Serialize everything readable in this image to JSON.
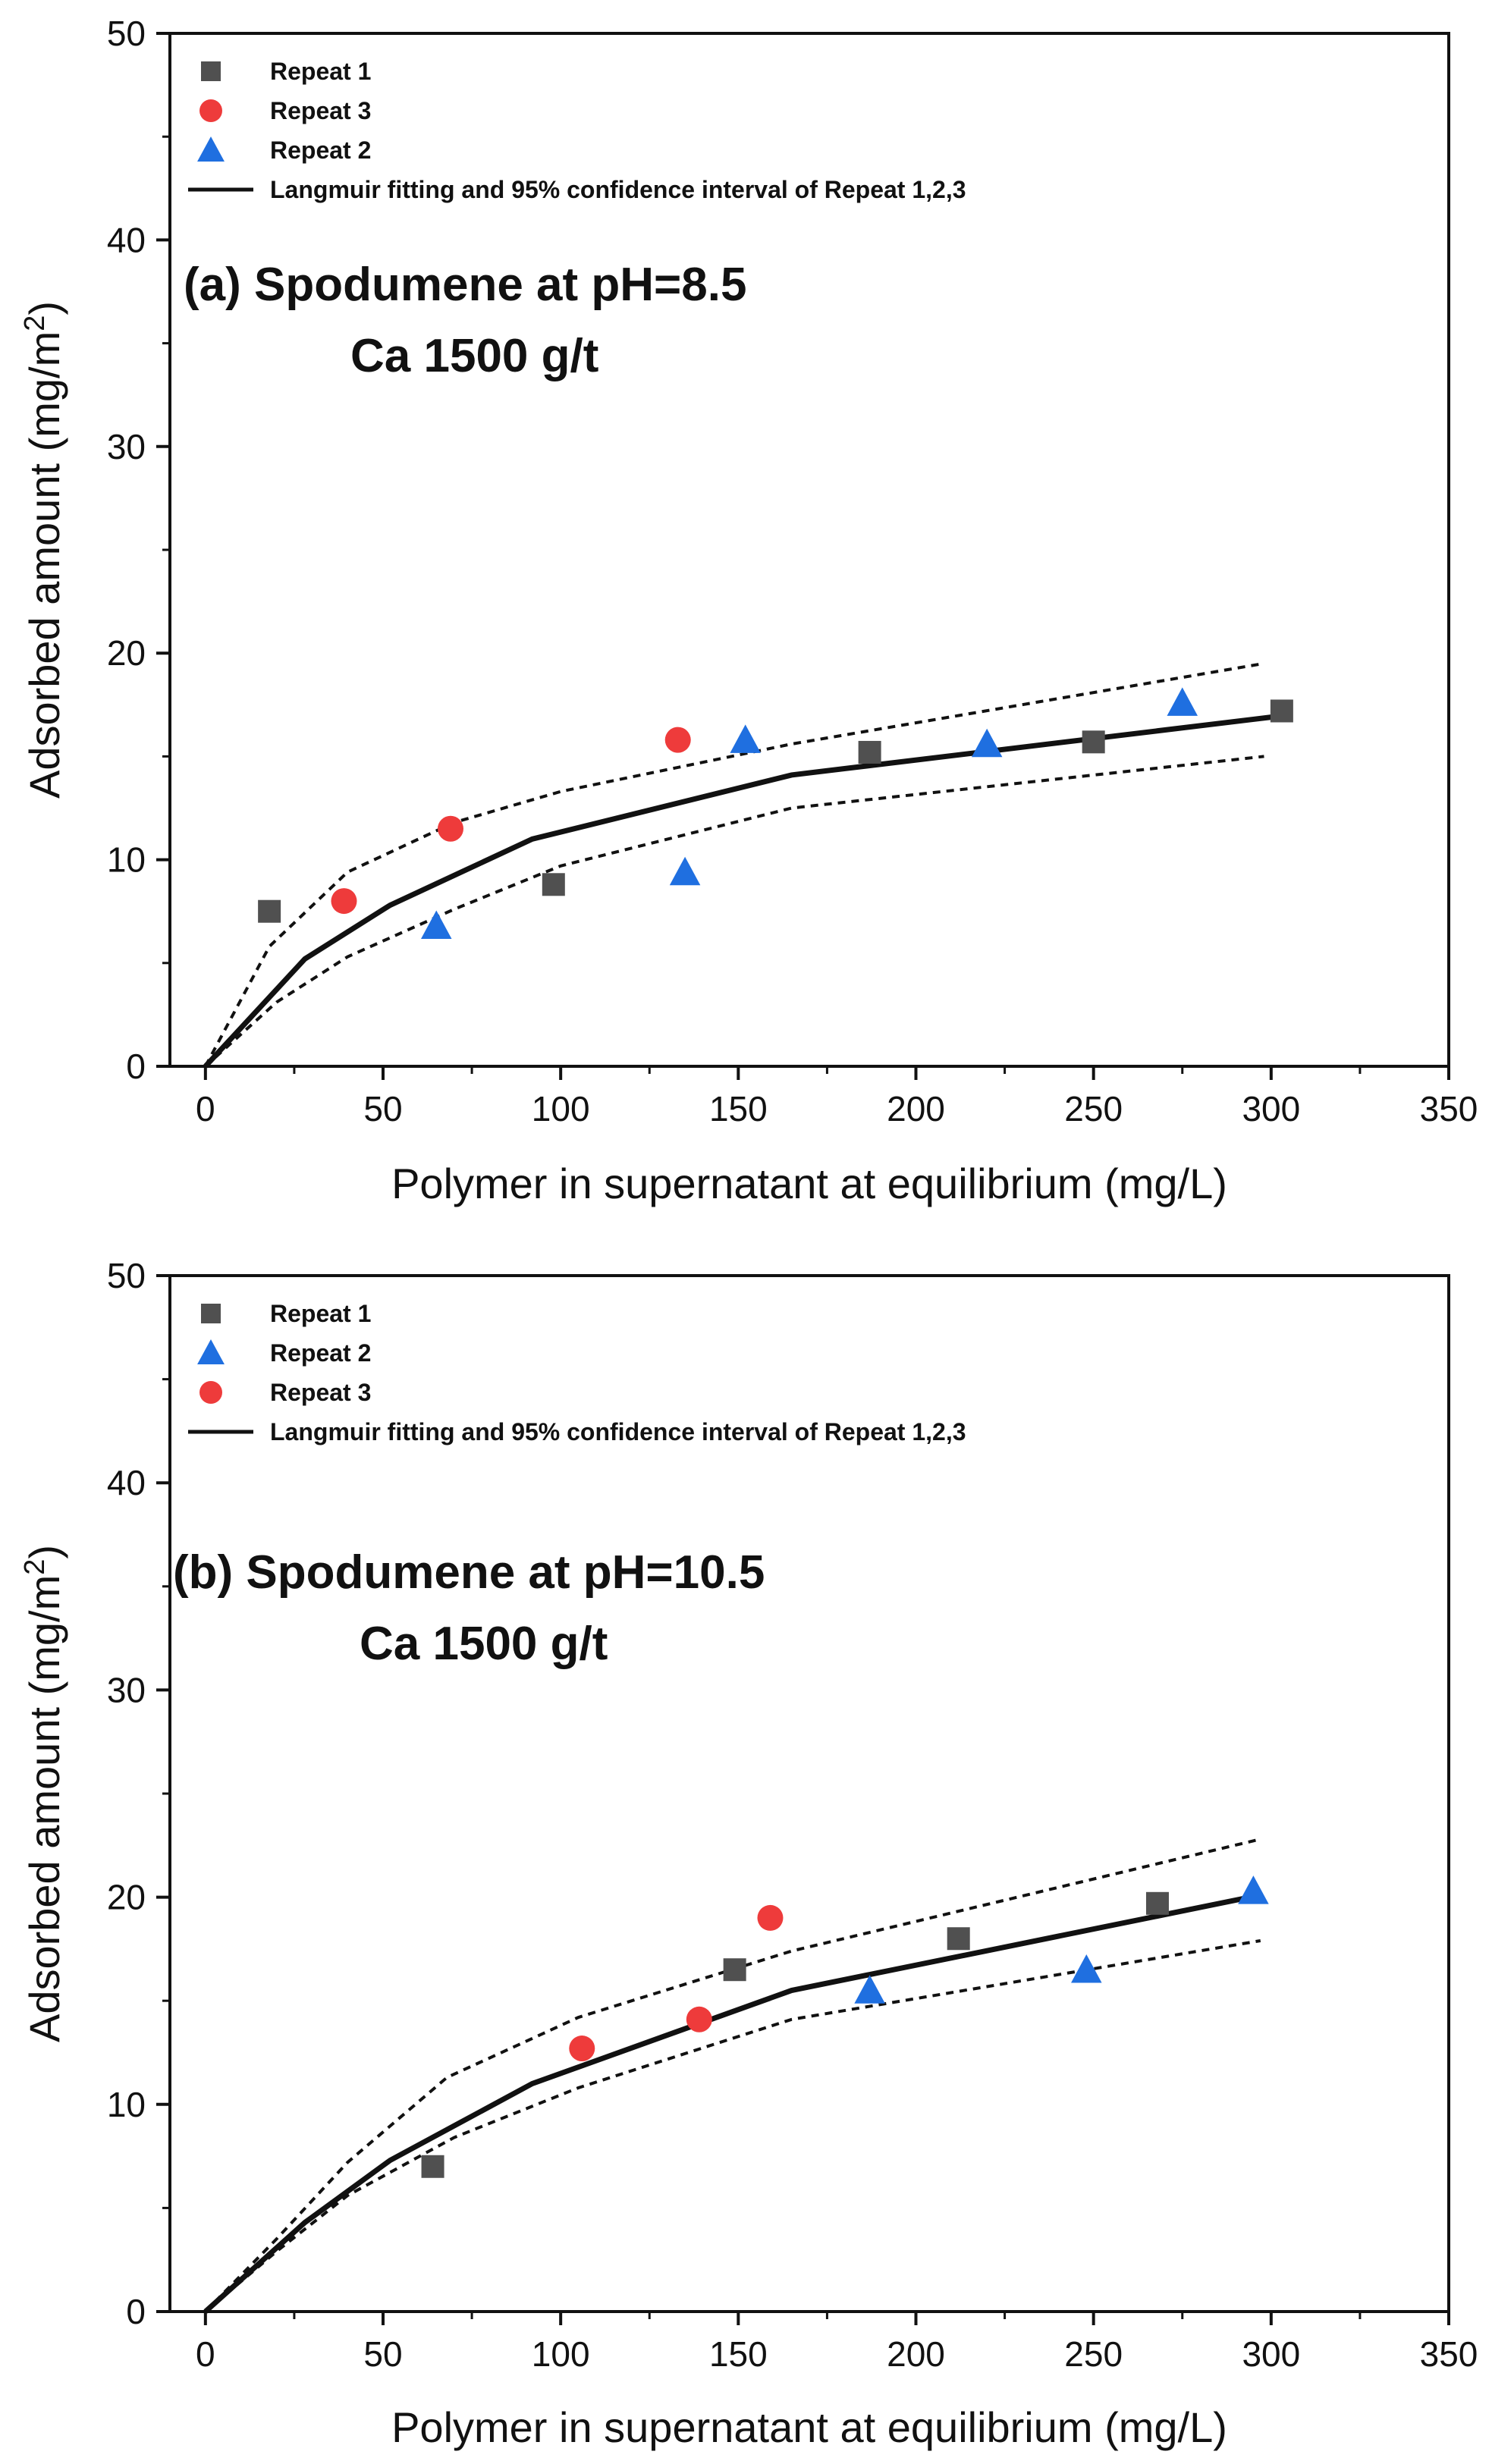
{
  "chart_data": [
    {
      "type": "scatter",
      "panel": "a",
      "title_line1": "(a) Spodumene at pH=8.5",
      "title_line2": "Ca 1500 g/t",
      "xlabel": "Polymer in supernatant at equilibrium (mg/L)",
      "ylabel": "Adsorbed amount (mg/m",
      "ylabel_sup": "2",
      "ylabel_end": ")",
      "xlim": [
        -10,
        350
      ],
      "ylim": [
        0,
        50
      ],
      "xticks": [
        0,
        50,
        100,
        150,
        200,
        250,
        300,
        350
      ],
      "yticks": [
        0,
        10,
        20,
        30,
        40,
        50
      ],
      "legend_position": "top-left",
      "series": [
        {
          "name": "Repeat 1",
          "marker": "square",
          "color": "#505050",
          "x": [
            18,
            98,
            187,
            250,
            303
          ],
          "y": [
            7.5,
            8.8,
            15.2,
            15.7,
            17.2
          ]
        },
        {
          "name": "Repeat 3",
          "marker": "circle",
          "color": "#ee3b3b",
          "x": [
            39,
            69,
            133
          ],
          "y": [
            8.0,
            11.5,
            15.8
          ]
        },
        {
          "name": "Repeat 2",
          "marker": "triangle",
          "color": "#1f6fe0",
          "x": [
            65,
            135,
            152,
            220,
            275
          ],
          "y": [
            6.8,
            9.4,
            15.8,
            15.6,
            17.6
          ]
        }
      ],
      "fit_legend": "Langmuir fitting and 95% confidence interval of Repeat 1,2,3",
      "fit": {
        "x": [
          0,
          28,
          52,
          92,
          165,
          300
        ],
        "y": [
          0,
          5.2,
          7.8,
          11.0,
          14.1,
          16.9
        ]
      },
      "ci_upper": {
        "x": [
          0,
          18,
          40,
          70,
          100,
          165,
          298
        ],
        "y": [
          0,
          5.8,
          9.4,
          11.8,
          13.3,
          15.6,
          19.5
        ]
      },
      "ci_lower": {
        "x": [
          0,
          20,
          40,
          70,
          100,
          165,
          298
        ],
        "y": [
          0,
          3.1,
          5.3,
          7.6,
          9.7,
          12.5,
          15.0
        ]
      }
    },
    {
      "type": "scatter",
      "panel": "b",
      "title_line1": "(b) Spodumene at pH=10.5",
      "title_line2": "Ca 1500 g/t",
      "xlabel": "Polymer in supernatant at equilibrium (mg/L)",
      "ylabel": "Adsorbed amount (mg/m",
      "ylabel_sup": "2",
      "ylabel_end": ")",
      "xlim": [
        -10,
        350
      ],
      "ylim": [
        0,
        50
      ],
      "xticks": [
        0,
        50,
        100,
        150,
        200,
        250,
        300,
        350
      ],
      "yticks": [
        0,
        10,
        20,
        30,
        40,
        50
      ],
      "legend_position": "top-left",
      "series": [
        {
          "name": "Repeat 1",
          "marker": "square",
          "color": "#505050",
          "x": [
            64,
            149,
            212,
            268
          ],
          "y": [
            7.0,
            16.5,
            18.0,
            19.7
          ]
        },
        {
          "name": "Repeat 2",
          "marker": "triangle",
          "color": "#1f6fe0",
          "x": [
            187,
            248,
            295
          ],
          "y": [
            15.5,
            16.5,
            20.3
          ]
        },
        {
          "name": "Repeat 3",
          "marker": "circle",
          "color": "#ee3b3b",
          "x": [
            106,
            139,
            159
          ],
          "y": [
            12.7,
            14.1,
            19.0
          ]
        }
      ],
      "fit_legend": "Langmuir fitting and 95% confidence interval of Repeat 1,2,3",
      "fit": {
        "x": [
          0,
          28,
          52,
          92,
          165,
          297
        ],
        "y": [
          0,
          4.3,
          7.3,
          11.0,
          15.5,
          20.1
        ]
      },
      "ci_upper": {
        "x": [
          0,
          20,
          40,
          68,
          105,
          165,
          297
        ],
        "y": [
          0,
          3.5,
          7.2,
          11.3,
          14.2,
          17.4,
          22.8
        ]
      },
      "ci_lower": {
        "x": [
          0,
          20,
          40,
          70,
          105,
          165,
          297
        ],
        "y": [
          0,
          2.9,
          5.6,
          8.4,
          10.8,
          14.1,
          17.9
        ]
      }
    }
  ]
}
